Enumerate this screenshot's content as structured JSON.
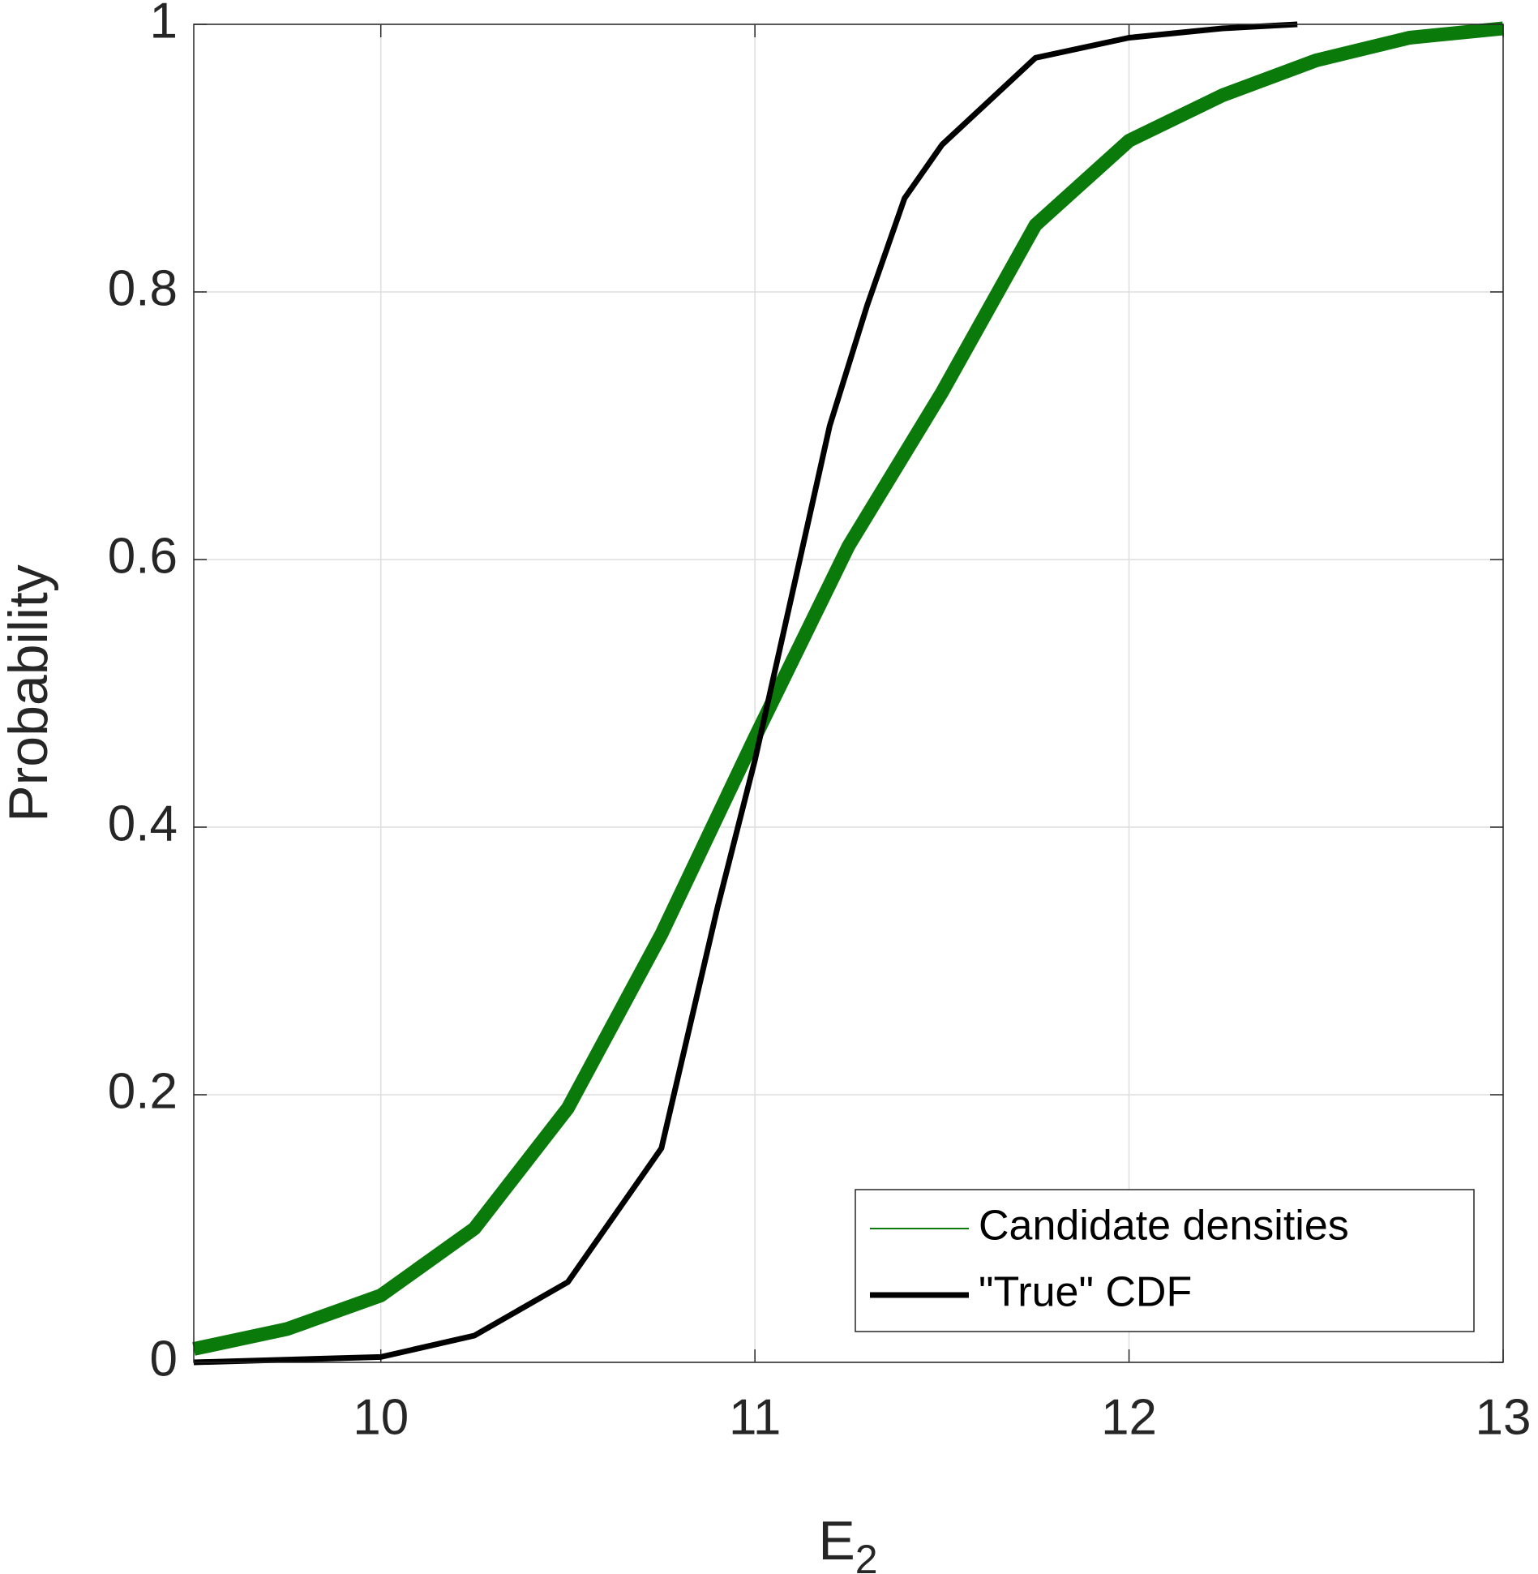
{
  "chart_data": {
    "type": "line",
    "x_label": {
      "text": "E",
      "subscript": "2"
    },
    "y_label": "Probability",
    "xlim": [
      9.5,
      13
    ],
    "xticks": [
      10,
      11,
      12,
      13
    ],
    "ylim": [
      0,
      1
    ],
    "yticks": [
      0,
      0.2,
      0.4,
      0.6,
      0.8,
      1
    ],
    "grid": true,
    "legend": "lower right",
    "series": [
      {
        "name": "Candidate densities",
        "color": "#0a7a0a",
        "width": "thick-band",
        "x": [
          9.5,
          9.75,
          10,
          10.25,
          10.5,
          10.75,
          11,
          11.25,
          11.5,
          11.75,
          12,
          12.25,
          12.5,
          12.75,
          13
        ],
        "values": [
          0.01,
          0.025,
          0.05,
          0.1,
          0.19,
          0.32,
          0.467,
          0.61,
          0.725,
          0.85,
          0.913,
          0.947,
          0.973,
          0.99,
          0.997
        ]
      },
      {
        "name": "\"True\" CDF",
        "color": "#000000",
        "width": "thin",
        "x": [
          9.5,
          10,
          10.25,
          10.5,
          10.75,
          10.9,
          11,
          11.1,
          11.2,
          11.3,
          11.4,
          11.5,
          11.75,
          12,
          12.25,
          12.45
        ],
        "values": [
          0.0,
          0.004,
          0.02,
          0.06,
          0.16,
          0.34,
          0.45,
          0.575,
          0.7,
          0.79,
          0.87,
          0.91,
          0.975,
          0.99,
          0.997,
          1.0
        ]
      }
    ]
  }
}
